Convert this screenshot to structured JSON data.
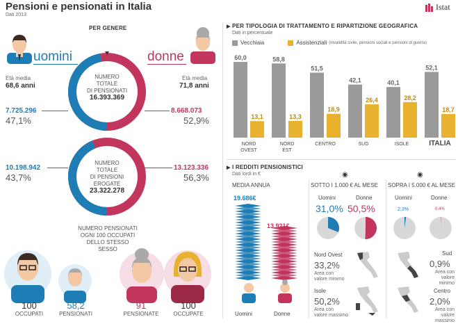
{
  "header": {
    "title": "Pensioni e pensionati in Italia",
    "subtitle": "Dati 2013",
    "logo": "Istat",
    "logo_color": "#c2365e"
  },
  "colors": {
    "men": "#1f7db5",
    "women": "#c2365e",
    "old_age": "#9a9a9a",
    "welfare": "#e8b12e"
  },
  "gender": {
    "section_title": "PER GENERE",
    "men_label": "uomini",
    "women_label": "donne",
    "men_age_label": "Età media",
    "men_age_value": "68,6 anni",
    "women_age_label": "Età media",
    "women_age_value": "71,8 anni",
    "donut1": {
      "center": [
        "NUMERO",
        "TOTALE",
        "DI PENSIONATI"
      ],
      "total": "16.393.369",
      "men_value": "7.725.296",
      "men_pct": "47,1%",
      "women_value": "8.668.073",
      "women_pct": "52,9%"
    },
    "donut2": {
      "center": [
        "NUMERO",
        "TOTALE",
        "DI PENSIONI",
        "EROGATE"
      ],
      "total": "23.322.278",
      "men_value": "10.198.942",
      "men_pct": "43,7%",
      "women_value": "13.123.336",
      "women_pct": "56,3%"
    },
    "ratio_text": [
      "NUMERO PENSIONATI",
      "OGNI 100 OCCUPATI",
      "DELLO STESSO",
      "SESSO"
    ],
    "figures": [
      {
        "value": "100",
        "label": "OCCUPATI"
      },
      {
        "value": "58,2",
        "label": "PENSIONATI"
      },
      {
        "value": "91",
        "label": "PENSIONATE"
      },
      {
        "value": "100",
        "label": "OCCUPATE"
      }
    ]
  },
  "type_section": {
    "title": "PER TIPOLOGIA DI TRATTAMENTO E RIPARTIZIONE GEOGRAFICA",
    "subtitle": "Dati in percentuale",
    "legend_old": "Vecchiaia",
    "legend_welfare": "Assistenziali",
    "legend_welfare_note": "(invalidità civile, pensioni sociali e pensioni di guerra)"
  },
  "income_section": {
    "title": "I REDDITI PENSIONISTICI",
    "subtitle": "Dati lordi in €",
    "avg_label": "MEDIA ANNUA",
    "men_avg": "19.686€",
    "women_avg": "13.921€",
    "men_label": "Uomini",
    "women_label": "Donne",
    "low": {
      "title": "SOTTO I 1.000 € AL MESE",
      "men_label": "Uomini",
      "women_label": "Donne",
      "men_pct": "31,0%",
      "women_pct": "50,5%",
      "area1": "Nord Ovest",
      "area1_pct": "33,2%",
      "area1_note": [
        "Area con",
        "valore minimo"
      ],
      "area2": "Isole",
      "area2_pct": "50,2%",
      "area2_note": [
        "Area con",
        "valore massimo"
      ]
    },
    "high": {
      "title": "SOPRA I 5.000 € AL MESE",
      "men_label": "Uomini",
      "women_label": "Donne",
      "men_pct": "2,3%",
      "women_pct": "0,4%",
      "area1": "Sud",
      "area1_pct": "0,9%",
      "area1_note": [
        "Area con",
        "valore minimo"
      ],
      "area2": "Centro",
      "area2_pct": "2,0%",
      "area2_note": [
        "Area con",
        "valore massimo"
      ]
    }
  },
  "chart_data": [
    {
      "type": "bar",
      "categories": [
        "NORD OVEST",
        "NORD EST",
        "CENTRO",
        "SUD",
        "ISOLE",
        "ITALIA"
      ],
      "series": [
        {
          "name": "Vecchiaia",
          "values": [
            60.0,
            58.8,
            51.5,
            42.1,
            40.1,
            52.1
          ]
        },
        {
          "name": "Assistenziali",
          "values": [
            13.1,
            13.3,
            18.9,
            26.4,
            28.2,
            18.7
          ]
        }
      ],
      "value_labels": [
        [
          "60,0",
          "58,8",
          "51,5",
          "42,1",
          "40,1",
          "52,1"
        ],
        [
          "13,1",
          "13,3",
          "18,9",
          "26,4",
          "28,2",
          "18,7"
        ]
      ],
      "ylim": [
        0,
        65
      ]
    },
    {
      "type": "bar",
      "categories": [
        "Uomini",
        "Donne"
      ],
      "values": [
        19686,
        13921
      ]
    },
    {
      "type": "pie",
      "categories": [
        "Uomini",
        "Donne"
      ],
      "values": [
        31.0,
        50.5
      ]
    },
    {
      "type": "pie",
      "categories": [
        "Uomini",
        "Donne"
      ],
      "values": [
        2.3,
        0.4
      ]
    }
  ]
}
